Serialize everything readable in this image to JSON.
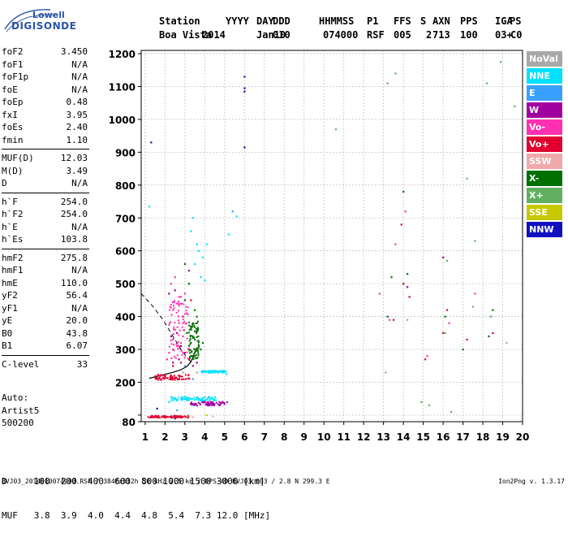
{
  "logo": {
    "line1": "Lowell",
    "line2": "DIGISONDE"
  },
  "header": {
    "labels": [
      "Station",
      "YYYY",
      "DAY",
      "DDD",
      "HHMMSS",
      "P1",
      "FFS",
      "S",
      "AXN",
      "PPS",
      "IGA",
      "PS"
    ],
    "values": [
      "Boa Vista",
      "2014",
      "Jan10",
      "010",
      "074000",
      "RSF",
      "005",
      "2",
      "713",
      "100",
      "03+",
      "C0"
    ]
  },
  "params": {
    "group1": [
      {
        "k": "foF2",
        "v": "3.450"
      },
      {
        "k": "foF1",
        "v": "N/A"
      },
      {
        "k": "foF1p",
        "v": "N/A"
      },
      {
        "k": "foE",
        "v": "N/A"
      },
      {
        "k": "foEp",
        "v": "0.48"
      },
      {
        "k": "fxI",
        "v": "3.95"
      },
      {
        "k": "foEs",
        "v": "2.40"
      },
      {
        "k": "fmin",
        "v": "1.10"
      }
    ],
    "group2": [
      {
        "k": "MUF(D)",
        "v": "12.03"
      },
      {
        "k": "M(D)",
        "v": "3.49"
      },
      {
        "k": "D",
        "v": "N/A"
      }
    ],
    "group3": [
      {
        "k": "h`F",
        "v": "254.0"
      },
      {
        "k": "h`F2",
        "v": "254.0"
      },
      {
        "k": "h`E",
        "v": "N/A"
      },
      {
        "k": "h`Es",
        "v": "103.8"
      }
    ],
    "group4": [
      {
        "k": "hmF2",
        "v": "275.8"
      },
      {
        "k": "hmF1",
        "v": "N/A"
      },
      {
        "k": "hmE",
        "v": "110.0"
      },
      {
        "k": "yF2",
        "v": "56.4"
      },
      {
        "k": "yF1",
        "v": "N/A"
      },
      {
        "k": "yE",
        "v": "20.0"
      },
      {
        "k": "B0",
        "v": "43.8"
      },
      {
        "k": "B1",
        "v": "6.07"
      }
    ],
    "group5": [
      {
        "k": "C-level",
        "v": "33"
      }
    ]
  },
  "auto": {
    "line1": "Auto:",
    "line2": "Artist5",
    "line3": "500200"
  },
  "legend": [
    {
      "label": "NoVal",
      "color": "#a8a8a8"
    },
    {
      "label": "NNE",
      "color": "#00e0ff"
    },
    {
      "label": "E",
      "color": "#3aa0ff"
    },
    {
      "label": "W",
      "color": "#a000a0"
    },
    {
      "label": "Vo-",
      "color": "#ff30b0"
    },
    {
      "label": "Vo+",
      "color": "#e00030"
    },
    {
      "label": "SSW",
      "color": "#f0a8a8"
    },
    {
      "label": "X-",
      "color": "#007000"
    },
    {
      "label": "X+",
      "color": "#60b060"
    },
    {
      "label": "SSE",
      "color": "#c8c800"
    },
    {
      "label": "NNW",
      "color": "#1010c0"
    }
  ],
  "dmuf": {
    "row1": "D     100  200  400  600  800 1000 1500 3000 [km]",
    "row2": "MUF   3.8  3.9  4.0  4.4  4.8  5.4  7.3 12.0 [MHz]"
  },
  "footer": "BVJ03_2014010074000.RSF / 384fx512h 50 kHz 2.5 km / DPS-4D BVJ03 003 / 2.8 N 299.3 E",
  "version": "Ion2Png v. 1.3.17",
  "chart_data": {
    "type": "scatter",
    "xlim": [
      0.8,
      20
    ],
    "ylim": [
      80,
      1210
    ],
    "x_ticks": [
      1,
      2,
      3,
      4,
      5,
      6,
      7,
      8,
      9,
      10,
      11,
      12,
      13,
      14,
      15,
      16,
      17,
      18,
      19,
      20
    ],
    "y_ticks": [
      80,
      100,
      200,
      300,
      400,
      500,
      600,
      700,
      800,
      900,
      1000,
      1100,
      1200
    ],
    "y_tick_labels": [
      "80",
      "",
      "200",
      "300",
      "400",
      "500",
      "600",
      "700",
      "800",
      "900",
      "1000",
      "1100",
      "1200"
    ],
    "grid": true,
    "series": [
      {
        "color": "#007000",
        "points": [
          [
            3.2,
            300
          ],
          [
            3.3,
            320
          ],
          [
            3.4,
            340
          ],
          [
            3.5,
            330
          ],
          [
            3.6,
            360
          ],
          [
            3.3,
            280
          ],
          [
            3.5,
            290
          ],
          [
            3.7,
            310
          ],
          [
            3.8,
            300
          ],
          [
            3.4,
            380
          ],
          [
            3.6,
            400
          ],
          [
            3.1,
            350
          ],
          [
            3.9,
            320
          ],
          [
            2.9,
            400
          ],
          [
            3.0,
            450
          ],
          [
            3.2,
            500
          ],
          [
            3.0,
            560
          ],
          [
            3.5,
            420
          ],
          [
            13.4,
            520
          ],
          [
            14.0,
            780
          ],
          [
            18.3,
            340
          ],
          [
            18.5,
            420
          ],
          [
            14.2,
            530
          ],
          [
            13.2,
            400
          ],
          [
            16.1,
            400
          ],
          [
            17.0,
            300
          ]
        ]
      },
      {
        "color": "#ff30b0",
        "points": [
          [
            2.2,
            290
          ],
          [
            2.4,
            300
          ],
          [
            2.6,
            310
          ],
          [
            2.8,
            320
          ],
          [
            2.5,
            360
          ],
          [
            2.7,
            380
          ],
          [
            2.9,
            380
          ],
          [
            2.4,
            420
          ],
          [
            2.6,
            440
          ],
          [
            2.8,
            460
          ],
          [
            3.0,
            470
          ],
          [
            2.3,
            500
          ],
          [
            2.5,
            520
          ],
          [
            2.7,
            460
          ],
          [
            3.3,
            370
          ],
          [
            3.1,
            410
          ],
          [
            2.9,
            340
          ],
          [
            3.2,
            300
          ],
          [
            2.1,
            270
          ],
          [
            13.3,
            390
          ],
          [
            13.6,
            620
          ],
          [
            14.1,
            720
          ],
          [
            16.3,
            380
          ],
          [
            17.6,
            470
          ],
          [
            12.8,
            470
          ],
          [
            15.2,
            280
          ]
        ]
      },
      {
        "color": "#a000a0",
        "points": [
          [
            2.3,
            340
          ],
          [
            2.6,
            350
          ],
          [
            2.8,
            310
          ],
          [
            3.0,
            290
          ],
          [
            2.7,
            270
          ],
          [
            2.4,
            260
          ],
          [
            3.4,
            250
          ],
          [
            3.6,
            260
          ],
          [
            2.2,
            470
          ],
          [
            2.5,
            480
          ],
          [
            3.2,
            540
          ],
          [
            3.6,
            380
          ],
          [
            16.0,
            580
          ],
          [
            14.2,
            490
          ]
        ]
      },
      {
        "color": "#e00030",
        "points": [
          [
            2.8,
            260
          ],
          [
            3.2,
            270
          ],
          [
            3.5,
            280
          ],
          [
            2.4,
            250
          ],
          [
            3.3,
            450
          ],
          [
            13.5,
            390
          ],
          [
            14.0,
            500
          ],
          [
            13.9,
            680
          ],
          [
            16.2,
            420
          ],
          [
            16.0,
            350
          ],
          [
            17.2,
            330
          ],
          [
            15.1,
            270
          ],
          [
            18.5,
            350
          ],
          [
            14.3,
            460
          ]
        ]
      },
      {
        "color": "#00e0ff",
        "points": [
          [
            3.5,
            560
          ],
          [
            3.7,
            600
          ],
          [
            3.9,
            580
          ],
          [
            4.1,
            620
          ],
          [
            3.4,
            700
          ],
          [
            3.6,
            620
          ],
          [
            3.8,
            520
          ],
          [
            4.0,
            510
          ],
          [
            3.3,
            660
          ],
          [
            4.5,
            230
          ],
          [
            4.7,
            230
          ],
          [
            4.9,
            235
          ],
          [
            3.3,
            150
          ],
          [
            3.7,
            150
          ],
          [
            4.0,
            145
          ],
          [
            2.2,
            140
          ],
          [
            2.6,
            145
          ],
          [
            5.1,
            225
          ],
          [
            5.2,
            650
          ],
          [
            5.6,
            705
          ],
          [
            1.2,
            735
          ]
        ]
      },
      {
        "color": "#3aa0ff",
        "points": [
          [
            2.6,
            115
          ],
          [
            3.5,
            130
          ],
          [
            3.0,
            250
          ],
          [
            3.4,
            210
          ],
          [
            5.4,
            720
          ]
        ]
      },
      {
        "color": "#1010c0",
        "points": [
          [
            1.6,
            120
          ],
          [
            6.0,
            1130
          ],
          [
            6.0,
            1095
          ],
          [
            6.0,
            1085
          ],
          [
            6.0,
            915
          ],
          [
            1.3,
            930
          ],
          [
            2.5,
            90
          ]
        ]
      },
      {
        "color": "#60b060",
        "points": [
          [
            13.6,
            1140
          ],
          [
            13.2,
            1110
          ],
          [
            18.9,
            1175
          ],
          [
            18.2,
            1110
          ],
          [
            16.2,
            570
          ],
          [
            17.5,
            430
          ],
          [
            16.1,
            350
          ],
          [
            14.9,
            140
          ],
          [
            15.3,
            130
          ],
          [
            16.4,
            110
          ],
          [
            19.6,
            1040
          ],
          [
            17.2,
            820
          ],
          [
            17.6,
            630
          ],
          [
            18.4,
            400
          ],
          [
            10.6,
            970
          ]
        ]
      },
      {
        "color": "#c8c800",
        "points": [
          [
            2.0,
            95
          ],
          [
            3.2,
            96
          ],
          [
            4.1,
            100
          ],
          [
            2.7,
            97
          ]
        ]
      },
      {
        "color": "#f0a8a8",
        "points": [
          [
            2.1,
            93
          ],
          [
            3.4,
            94
          ],
          [
            4.4,
            96
          ],
          [
            1.8,
            92
          ]
        ]
      },
      {
        "color": "#a8a8a8",
        "points": [
          [
            2.9,
            230
          ],
          [
            3.6,
            230
          ],
          [
            4.2,
            230
          ],
          [
            2.3,
            210
          ],
          [
            13.1,
            230
          ],
          [
            14.2,
            390
          ],
          [
            19.2,
            320
          ]
        ]
      }
    ]
  }
}
